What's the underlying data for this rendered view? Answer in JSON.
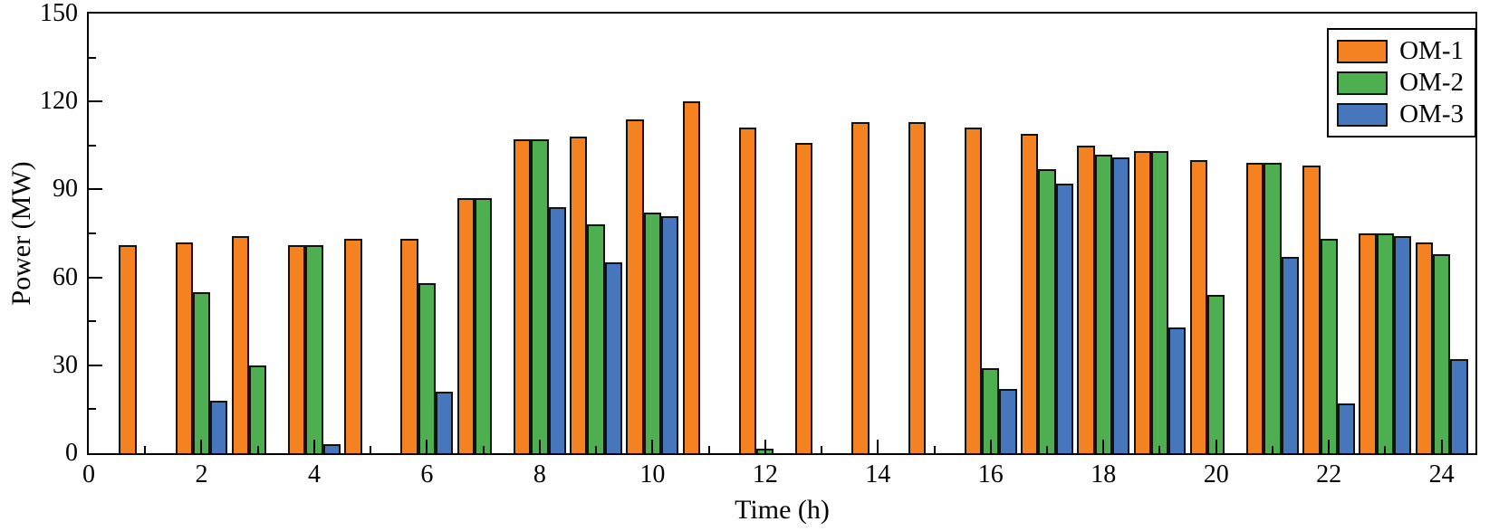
{
  "chart_data": {
    "type": "bar",
    "title": "",
    "xlabel": "Time (h)",
    "ylabel": "Power (MW)",
    "xlim": [
      0,
      24.6
    ],
    "ylim": [
      0,
      150
    ],
    "grid": false,
    "bar_width": 0.31,
    "x_major_tick_step": 2,
    "x_minor_tick_step": 1,
    "y_major_tick_step": 30,
    "y_minor_tick_step": 15,
    "x_tick_labels": [
      {
        "value": 0,
        "label": "0"
      },
      {
        "value": 2,
        "label": "2"
      },
      {
        "value": 4,
        "label": "4"
      },
      {
        "value": 6,
        "label": "6"
      },
      {
        "value": 8,
        "label": "8"
      },
      {
        "value": 10,
        "label": "10"
      },
      {
        "value": 12,
        "label": "12"
      },
      {
        "value": 14,
        "label": "14"
      },
      {
        "value": 16,
        "label": "16"
      },
      {
        "value": 18,
        "label": "18"
      },
      {
        "value": 20,
        "label": "20"
      },
      {
        "value": 22,
        "label": "22"
      },
      {
        "value": 24,
        "label": "24"
      }
    ],
    "y_tick_labels": [
      {
        "value": 0,
        "label": "0"
      },
      {
        "value": 30,
        "label": "30"
      },
      {
        "value": 60,
        "label": "60"
      },
      {
        "value": 90,
        "label": "90"
      },
      {
        "value": 120,
        "label": "120"
      },
      {
        "value": 150,
        "label": "150"
      }
    ],
    "categories": [
      1,
      2,
      3,
      4,
      5,
      6,
      7,
      8,
      9,
      10,
      11,
      12,
      13,
      14,
      15,
      16,
      17,
      18,
      19,
      20,
      21,
      22,
      23,
      24
    ],
    "series": [
      {
        "name": "OM-1",
        "color": "#F58220",
        "values": [
          71,
          72,
          74,
          71,
          73,
          73,
          87,
          107,
          108,
          114,
          120,
          111,
          106,
          113,
          113,
          111,
          109,
          105,
          103,
          100,
          99,
          98,
          75,
          72
        ]
      },
      {
        "name": "OM-2",
        "color": "#4DAF4F",
        "values": [
          0,
          55,
          30,
          71,
          0,
          58,
          87,
          107,
          78,
          82,
          0,
          1.5,
          0,
          0,
          0,
          29,
          97,
          102,
          103,
          54,
          99,
          73,
          75,
          68
        ]
      },
      {
        "name": "OM-3",
        "color": "#4677BD",
        "values": [
          0,
          18,
          0,
          3,
          0,
          21,
          0,
          84,
          65,
          81,
          0,
          0,
          0,
          0,
          0,
          22,
          92,
          101,
          43,
          0,
          67,
          17,
          74,
          32
        ]
      }
    ],
    "legend": {
      "position": "top-right",
      "entries": [
        "OM-1",
        "OM-2",
        "OM-3"
      ]
    },
    "colors": {
      "edge": "#121212",
      "axis": "#000000",
      "background": "#ffffff"
    }
  }
}
